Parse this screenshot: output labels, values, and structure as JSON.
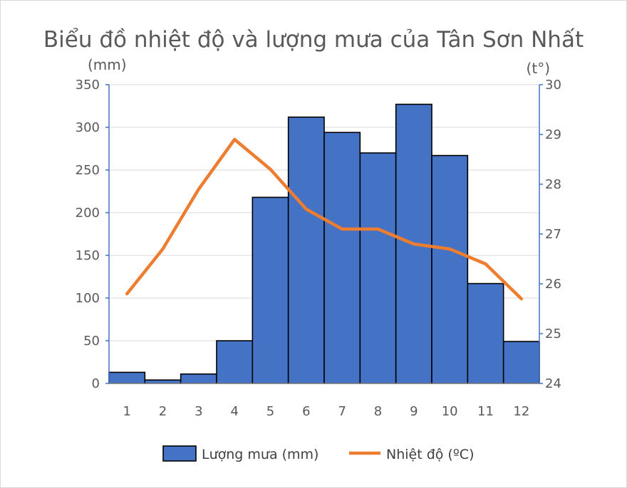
{
  "chart_data": {
    "type": "bar",
    "title": "Biểu đồ nhiệt độ và lượng mưa của Tân Sơn Nhất",
    "y_left_unit": "(mm)",
    "y_right_unit": "(t°)",
    "categories": [
      "1",
      "2",
      "3",
      "4",
      "5",
      "6",
      "7",
      "8",
      "9",
      "10",
      "11",
      "12"
    ],
    "y_left_range": [
      0,
      350
    ],
    "y_left_ticks": [
      0,
      50,
      100,
      150,
      200,
      250,
      300,
      350
    ],
    "y_right_range": [
      24,
      30
    ],
    "y_right_ticks": [
      24,
      25,
      26,
      27,
      28,
      29,
      30
    ],
    "grid": true,
    "legend_position": "bottom",
    "series": [
      {
        "name": "Lượng mưa (mm)",
        "type": "bar",
        "axis": "left",
        "color": "#4472c4",
        "values": [
          13,
          4,
          11,
          50,
          218,
          312,
          294,
          270,
          327,
          267,
          117,
          49
        ]
      },
      {
        "name": "Nhiệt độ (ºC)",
        "type": "line",
        "axis": "right",
        "color": "#ed7d31",
        "values": [
          25.8,
          26.7,
          27.9,
          28.9,
          28.3,
          27.5,
          27.1,
          27.1,
          26.8,
          26.7,
          26.4,
          25.7
        ]
      }
    ]
  }
}
